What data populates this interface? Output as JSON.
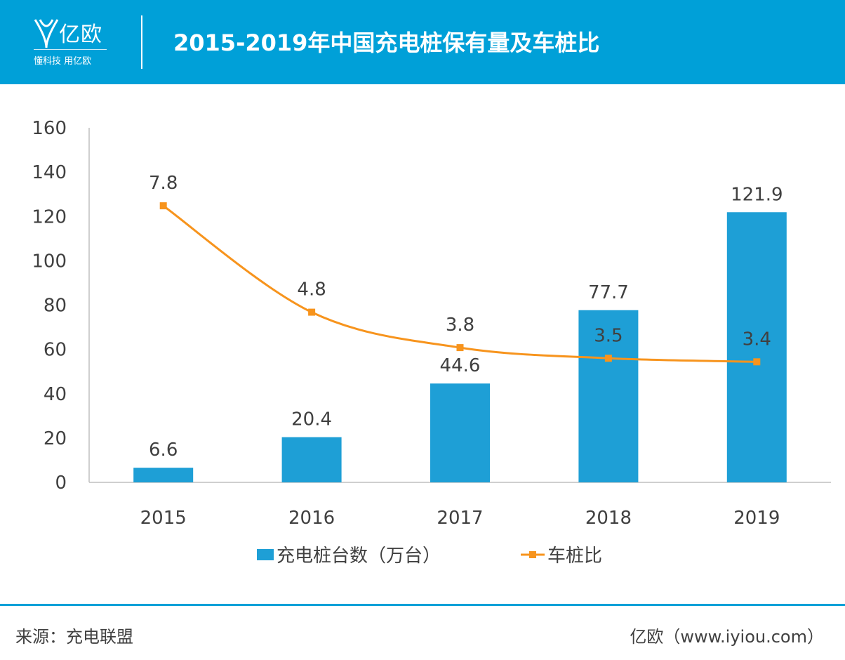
{
  "header": {
    "logo_text": "亿欧",
    "logo_slogan": "懂科技 用亿欧",
    "title": "2015-2019年中国充电桩保有量及车桩比"
  },
  "chart_data": {
    "type": "bar",
    "categories": [
      "2015",
      "2016",
      "2017",
      "2018",
      "2019"
    ],
    "series": [
      {
        "name": "充电桩台数（万台）",
        "type": "bar",
        "values": [
          6.6,
          20.4,
          44.6,
          77.7,
          121.9
        ],
        "color": "#1e9fd6"
      },
      {
        "name": "车桩比",
        "type": "line",
        "values": [
          7.8,
          4.8,
          3.8,
          3.5,
          3.4
        ],
        "color": "#f7941d"
      }
    ],
    "yticks": [
      "0",
      "20",
      "40",
      "60",
      "80",
      "100",
      "120",
      "140",
      "160"
    ],
    "ylim": [
      0,
      160
    ],
    "line_secondary_ylim": [
      0,
      10
    ],
    "legend_position": "bottom",
    "grid": false
  },
  "footer": {
    "source": "来源：充电联盟",
    "brand": "亿欧（www.iyiou.com）"
  },
  "colors": {
    "header": "#00a0d8",
    "bar": "#1e9fd6",
    "line": "#f7941d"
  }
}
